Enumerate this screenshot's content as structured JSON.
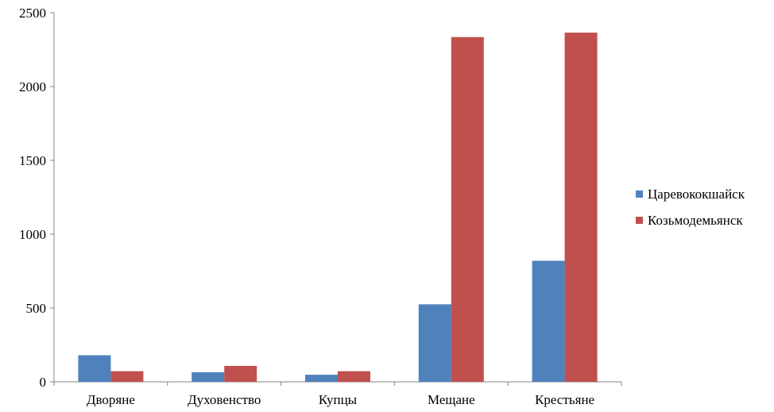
{
  "chart_data": {
    "type": "bar",
    "categories": [
      "Дворяне",
      "Духовенство",
      "Купцы",
      "Мещане",
      "Крестьяне"
    ],
    "series": [
      {
        "name": "Царевококшайск",
        "color": "#4F81BD",
        "values": [
          180,
          65,
          48,
          525,
          820
        ]
      },
      {
        "name": "Козьмодемьянск",
        "color": "#C0504D",
        "values": [
          72,
          108,
          72,
          2335,
          2365
        ]
      }
    ],
    "y_ticks": [
      "0",
      "500",
      "1000",
      "1500",
      "2000",
      "2500"
    ],
    "ylim": [
      0,
      2500
    ],
    "grid": false,
    "legend": "right"
  }
}
